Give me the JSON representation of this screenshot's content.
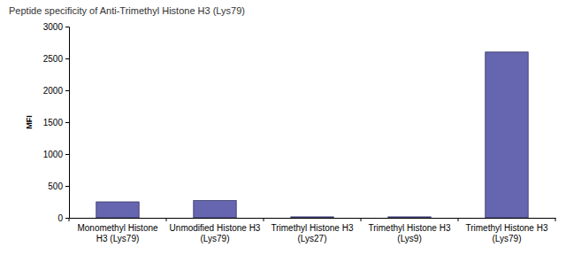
{
  "chart_data": {
    "type": "bar",
    "title": "Peptide specificity of Anti-Trimethyl Histone H3 (Lys79)",
    "y_label": "MFI",
    "categories": [
      "Monomethyl Histone H3 (Lys79)",
      "Unmodified Histone H3 (Lys79)",
      "Trimethyl Histone H3 (Lys27)",
      "Trimethyl Histone H3 (Lys9)",
      "Trimethyl Histone H3 (Lys79)"
    ],
    "values": [
      250,
      270,
      15,
      15,
      2600
    ],
    "color": "#6666b0",
    "ylim": [
      0,
      3000
    ],
    "yticks": [
      0,
      500,
      1000,
      1500,
      2000,
      2500,
      3000
    ],
    "grid": false
  }
}
